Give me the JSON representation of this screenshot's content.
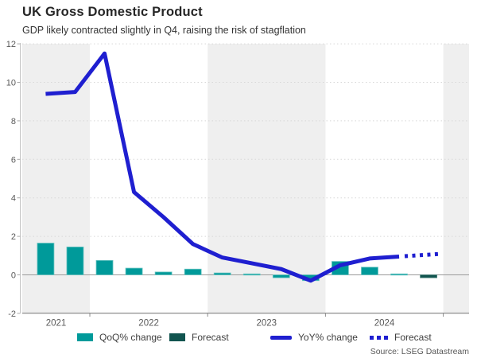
{
  "header": {
    "title": "UK Gross Domestic Product",
    "subtitle": "GDP likely contracted slightly in Q4, raising the risk of stagflation"
  },
  "source": "Source: LSEG Datastream",
  "legend": {
    "items": [
      {
        "label": "QoQ% change",
        "marker": "bar",
        "color": "#009a9a"
      },
      {
        "label": "Forecast",
        "marker": "bar",
        "color": "#11544f"
      },
      {
        "label": "YoY% change",
        "marker": "line",
        "color": "#1f1fd0"
      },
      {
        "label": "Forecast",
        "marker": "dotted-line",
        "color": "#1f1fd0"
      }
    ]
  },
  "colors": {
    "qoq_bar": "#009a9a",
    "qoq_bar_border": "#6cc5c2",
    "forecast_bar": "#11544f",
    "forecast_bar_border": "#4a837b",
    "yoy_line": "#1f1fd0",
    "band_shade": "#efefef",
    "gridline": "#d8d8d8",
    "zero_line": "#9a9a9a",
    "axis_line": "#8c8c8c",
    "tick_text": "#595959"
  },
  "chart_data": {
    "type": "bar+line",
    "title": "UK Gross Domestic Product",
    "subtitle": "GDP likely contracted slightly in Q4, raising the risk of stagflation",
    "categories": [
      "2021-Q3",
      "2021-Q4",
      "2022-Q1",
      "2022-Q2",
      "2022-Q3",
      "2022-Q4",
      "2023-Q1",
      "2023-Q2",
      "2023-Q3",
      "2023-Q4",
      "2024-Q1",
      "2024-Q2",
      "2024-Q3",
      "2024-Q4"
    ],
    "series": [
      {
        "name": "QoQ% change",
        "type": "bar",
        "values": [
          1.65,
          1.45,
          0.75,
          0.35,
          0.15,
          0.3,
          0.1,
          0.05,
          -0.15,
          -0.3,
          0.7,
          0.4,
          0.05,
          null
        ]
      },
      {
        "name": "QoQ% change Forecast",
        "type": "bar",
        "values": [
          null,
          null,
          null,
          null,
          null,
          null,
          null,
          null,
          null,
          null,
          null,
          null,
          null,
          -0.15
        ]
      },
      {
        "name": "YoY% change",
        "type": "line",
        "values": [
          9.4,
          9.5,
          11.5,
          4.3,
          3.0,
          1.6,
          0.9,
          0.6,
          0.3,
          -0.3,
          0.5,
          0.85,
          0.95,
          null
        ]
      },
      {
        "name": "YoY% change Forecast",
        "type": "line-dotted",
        "values": [
          null,
          null,
          null,
          null,
          null,
          null,
          null,
          null,
          null,
          null,
          null,
          null,
          0.95,
          1.05
        ]
      }
    ],
    "ylim": [
      -2,
      12
    ],
    "yticks": [
      -2,
      0,
      2,
      4,
      6,
      8,
      10,
      12
    ],
    "year_labels": [
      "2021",
      "2022",
      "2023",
      "2024"
    ],
    "grid": "horizontal dotted gridlines at even values",
    "banding": "alternating year shading (2021 and 2023 shaded, right edge stub shaded)",
    "legend_position": "bottom"
  }
}
